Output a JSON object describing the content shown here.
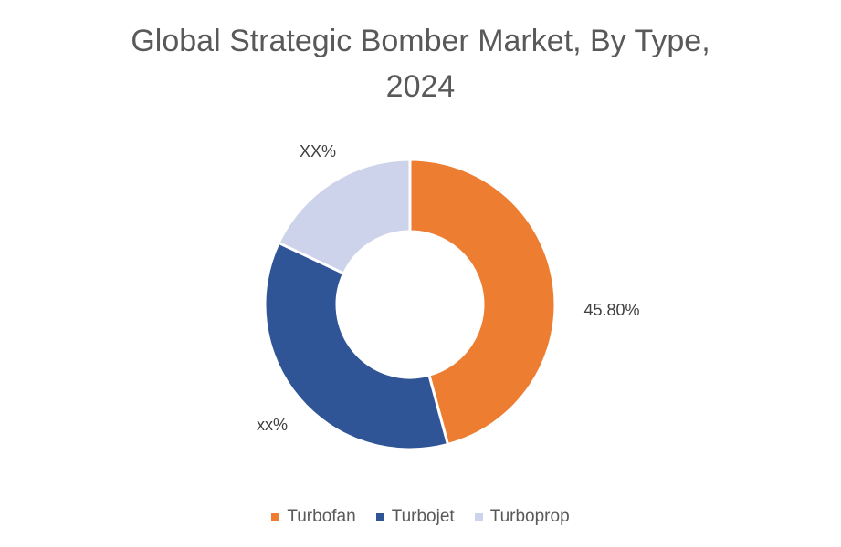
{
  "chart_data": {
    "type": "pie",
    "variant": "donut",
    "title": "Global Strategic Bomber Market, By Type, 2024",
    "categories": [
      "Turbofan",
      "Turbojet",
      "Turboprop"
    ],
    "values": [
      45.8,
      36.2,
      18.0
    ],
    "data_labels": [
      "45.80%",
      "xx%",
      "XX%"
    ],
    "colors": [
      "#ED7D31",
      "#2F5597",
      "#CDD3EA"
    ],
    "legend_position": "bottom"
  }
}
